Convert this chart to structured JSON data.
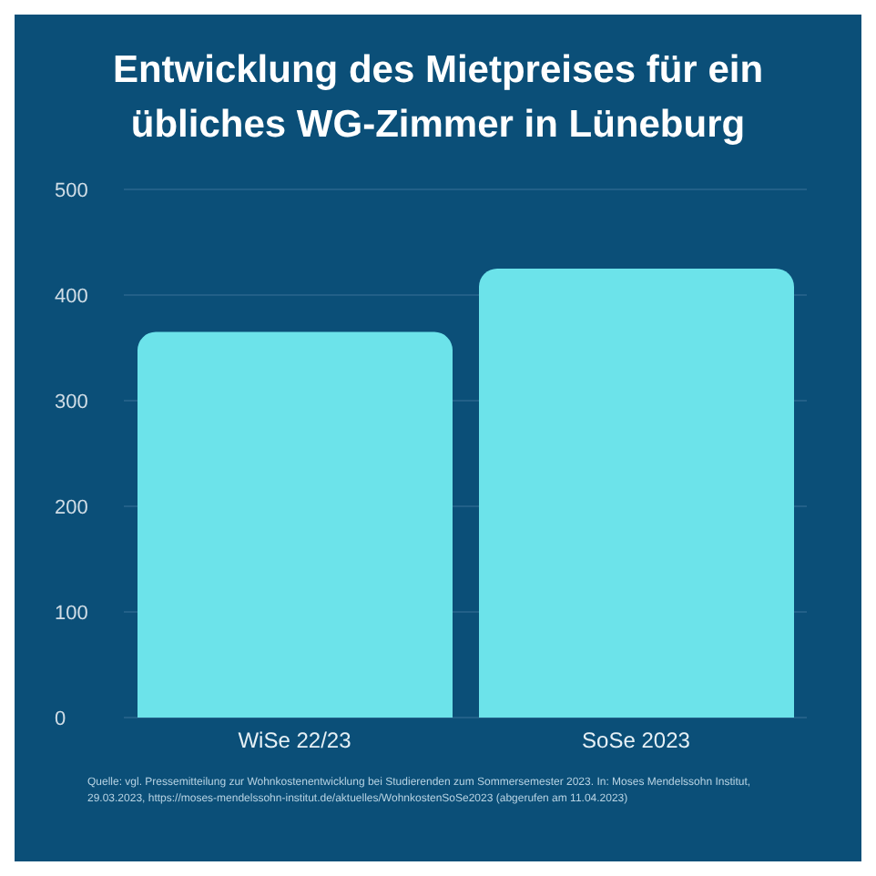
{
  "chart_data": {
    "type": "bar",
    "title": "Entwicklung des Mietpreises für ein übliches WG-Zimmer in Lüneburg",
    "categories": [
      "WiSe 22/23",
      "SoSe 2023"
    ],
    "values": [
      365,
      425
    ],
    "color": "#6ce3ea",
    "ylim": [
      0,
      500
    ],
    "yticks": [
      0,
      100,
      200,
      300,
      400,
      500
    ],
    "grid": "y",
    "annotations": [
      "Quelle: vgl. Pressemitteilung zur Wohnkostenentwicklung bei Studierenden zum Sommersemester 2023. In: Moses Mendelssohn Institut, 29.03.2023, https://moses-mendelssohn-institut.de/aktuelles/WohnkostenSoSe2023 (abgerufen am 11.04.2023)"
    ]
  }
}
